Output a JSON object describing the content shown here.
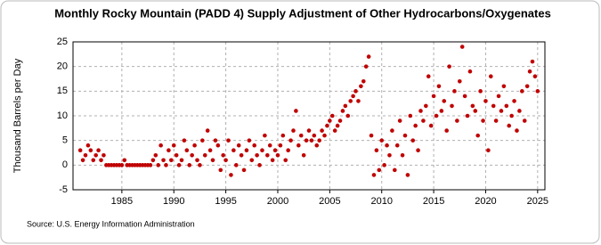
{
  "chart_data": {
    "type": "scatter",
    "title": "Monthly Rocky Mountain (PADD 4) Supply Adjustment of Other Hydrocarbons/Oxygenates",
    "y_label": "Thousand Barrels per Day",
    "source": "Source: U.S. Energy Information Administration",
    "grid": true,
    "color": "#c00000",
    "xlim": [
      1980.3,
      2025.7
    ],
    "xticks": [
      1985,
      1990,
      1995,
      2000,
      2005,
      2010,
      2015,
      2020,
      2025
    ],
    "ylim": [
      -5,
      25
    ],
    "yticks": [
      -5,
      0,
      5,
      10,
      15,
      20,
      25
    ],
    "x": [
      1981,
      1981.25,
      1981.5,
      1981.75,
      1982,
      1982.25,
      1982.5,
      1982.75,
      1983,
      1983.25,
      1983.5,
      1983.75,
      1984,
      1984.25,
      1984.5,
      1984.75,
      1985,
      1985.25,
      1985.5,
      1985.75,
      1986,
      1986.25,
      1986.5,
      1986.75,
      1987,
      1987.25,
      1987.5,
      1987.75,
      1988,
      1988.25,
      1988.5,
      1988.75,
      1989,
      1989.25,
      1989.5,
      1989.75,
      1990,
      1990.25,
      1990.5,
      1990.75,
      1991,
      1991.25,
      1991.5,
      1991.75,
      1992,
      1992.25,
      1992.5,
      1992.75,
      1993,
      1993.25,
      1993.5,
      1993.75,
      1994,
      1994.25,
      1994.5,
      1994.75,
      1995,
      1995.25,
      1995.5,
      1995.75,
      1996,
      1996.25,
      1996.5,
      1996.75,
      1997,
      1997.25,
      1997.5,
      1997.75,
      1998,
      1998.25,
      1998.5,
      1998.75,
      1999,
      1999.25,
      1999.5,
      1999.75,
      2000,
      2000.25,
      2000.5,
      2000.75,
      2001,
      2001.25,
      2001.5,
      2001.75,
      2002,
      2002.25,
      2002.5,
      2002.75,
      2003,
      2003.25,
      2003.5,
      2003.75,
      2004,
      2004.25,
      2004.5,
      2004.75,
      2005,
      2005.25,
      2005.5,
      2005.75,
      2006,
      2006.25,
      2006.5,
      2006.75,
      2007,
      2007.25,
      2007.5,
      2007.75,
      2008,
      2008.25,
      2008.5,
      2008.75,
      2009,
      2009.25,
      2009.5,
      2009.75,
      2010,
      2010.25,
      2010.5,
      2010.75,
      2011,
      2011.25,
      2011.5,
      2011.75,
      2012,
      2012.25,
      2012.5,
      2012.75,
      2013,
      2013.25,
      2013.5,
      2013.75,
      2014,
      2014.25,
      2014.5,
      2014.75,
      2015,
      2015.25,
      2015.5,
      2015.75,
      2016,
      2016.25,
      2016.5,
      2016.75,
      2017,
      2017.25,
      2017.5,
      2017.75,
      2018,
      2018.25,
      2018.5,
      2018.75,
      2019,
      2019.25,
      2019.5,
      2019.75,
      2020,
      2020.25,
      2020.5,
      2020.75,
      2021,
      2021.25,
      2021.5,
      2021.75,
      2022,
      2022.25,
      2022.5,
      2022.75,
      2023,
      2023.25,
      2023.5,
      2023.75,
      2024,
      2024.25,
      2024.5,
      2024.75,
      2025
    ],
    "values": [
      3,
      1,
      2,
      4,
      3,
      1,
      2,
      3,
      1,
      2,
      0,
      0,
      0,
      0,
      0,
      0,
      0,
      1,
      0,
      0,
      0,
      0,
      0,
      0,
      0,
      0,
      0,
      0,
      1,
      2,
      0,
      4,
      1,
      0,
      3,
      1,
      4,
      2,
      0,
      1,
      5,
      3,
      0,
      2,
      4,
      1,
      0,
      5,
      2,
      7,
      3,
      1,
      5,
      4,
      -1,
      2,
      1,
      5,
      -2,
      3,
      0,
      4,
      2,
      -1,
      3,
      5,
      1,
      4,
      2,
      0,
      3,
      6,
      2,
      4,
      1,
      3,
      2,
      4,
      6,
      1,
      3,
      5,
      7,
      11,
      4,
      6,
      2,
      5,
      7,
      5,
      6,
      4,
      5,
      7,
      6,
      8,
      9,
      10,
      7,
      8,
      9,
      11,
      12,
      10,
      13,
      14,
      15,
      13,
      16,
      17,
      20,
      22,
      6,
      -2,
      3,
      -1,
      5,
      0,
      4,
      2,
      7,
      -1,
      4,
      9,
      2,
      6,
      -2,
      10,
      5,
      8,
      3,
      11,
      9,
      12,
      18,
      8,
      14,
      10,
      16,
      11,
      13,
      7,
      20,
      12,
      15,
      9,
      17,
      24,
      14,
      10,
      19,
      12,
      11,
      6,
      15,
      9,
      13,
      3,
      18,
      12,
      9,
      14,
      11,
      16,
      12,
      8,
      10,
      13,
      7,
      11,
      15,
      9,
      16,
      19,
      21,
      18,
      15
    ]
  }
}
